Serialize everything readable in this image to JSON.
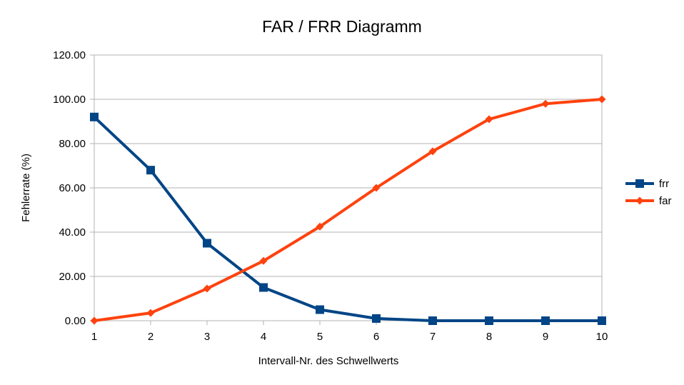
{
  "chart_data": {
    "type": "line",
    "title": "FAR / FRR Diagramm",
    "xlabel": "Intervall-Nr. des Schwellwerts",
    "ylabel": "Fehlerrate (%)",
    "x": [
      1,
      2,
      3,
      4,
      5,
      6,
      7,
      8,
      9,
      10
    ],
    "ylim": [
      0,
      120
    ],
    "yticks": [
      "0.00",
      "20.00",
      "40.00",
      "60.00",
      "80.00",
      "100.00",
      "120.00"
    ],
    "grid": true,
    "legend_position": "right",
    "series": [
      {
        "name": "frr",
        "color": "#004586",
        "marker": "square",
        "values": [
          92,
          68,
          35,
          15,
          5,
          1,
          0,
          0,
          0,
          0
        ]
      },
      {
        "name": "far",
        "color": "#ff420e",
        "marker": "diamond",
        "values": [
          0,
          3.5,
          14.5,
          27,
          42.5,
          60,
          76.5,
          91,
          98,
          100
        ]
      }
    ]
  }
}
